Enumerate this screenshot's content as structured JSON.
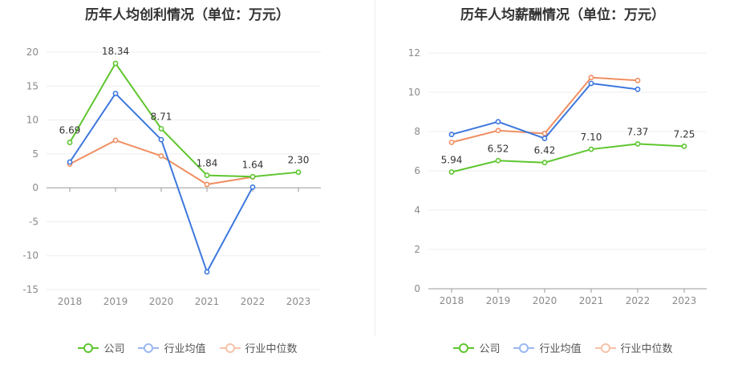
{
  "chart_data": [
    {
      "type": "line",
      "title": "历年人均创利情况（单位：万元）",
      "categories": [
        "2018",
        "2019",
        "2020",
        "2021",
        "2022",
        "2023"
      ],
      "ylim": [
        -15,
        20
      ],
      "yticks": [
        20,
        15,
        10,
        5,
        0,
        -5,
        -10,
        -15
      ],
      "grid": true,
      "legend_position": "bottom",
      "series": [
        {
          "name": "公司",
          "color": "#5ec62f",
          "values": [
            6.69,
            18.34,
            8.71,
            1.84,
            1.64,
            2.3
          ],
          "labels": [
            "6.69",
            "18.34",
            "8.71",
            "1.84",
            "1.64",
            "2.30"
          ]
        },
        {
          "name": "行业均值",
          "color": "#3d78de",
          "values": [
            3.8,
            13.9,
            7.1,
            -12.4,
            0.1,
            null
          ]
        },
        {
          "name": "行业中位数",
          "color": "#f08f62",
          "values": [
            3.5,
            7.0,
            4.7,
            0.5,
            1.6,
            null
          ]
        }
      ]
    },
    {
      "type": "line",
      "title": "历年人均薪酬情况（单位：万元）",
      "categories": [
        "2018",
        "2019",
        "2020",
        "2021",
        "2022",
        "2023"
      ],
      "ylim": [
        0,
        12
      ],
      "yticks": [
        12,
        10,
        8,
        6,
        4,
        2,
        0
      ],
      "grid": true,
      "legend_position": "bottom",
      "series": [
        {
          "name": "公司",
          "color": "#5ec62f",
          "values": [
            5.94,
            6.52,
            6.42,
            7.1,
            7.37,
            7.25
          ],
          "labels": [
            "5.94",
            "6.52",
            "6.42",
            "7.10",
            "7.37",
            "7.25"
          ]
        },
        {
          "name": "行业均值",
          "color": "#3d78de",
          "values": [
            7.85,
            8.5,
            7.65,
            10.45,
            10.15,
            null
          ]
        },
        {
          "name": "行业中位数",
          "color": "#f08f62",
          "values": [
            7.45,
            8.05,
            7.9,
            10.75,
            10.6,
            null
          ]
        }
      ]
    }
  ]
}
